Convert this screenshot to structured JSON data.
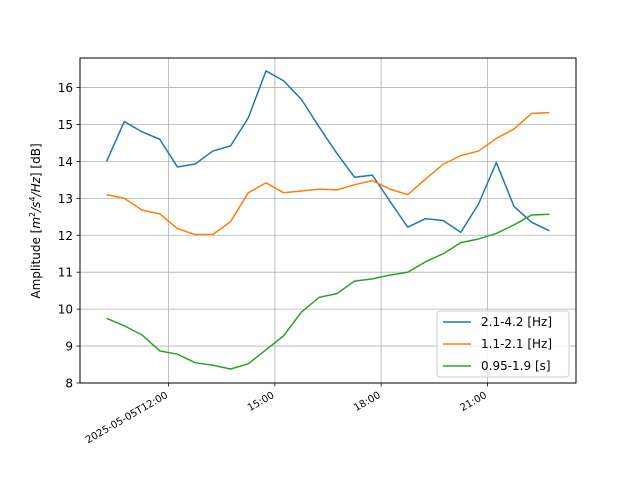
{
  "chart_data": {
    "type": "line",
    "ylabel_parts": [
      "Amplitude [",
      "m",
      "2",
      "/",
      "s",
      "4",
      "/Hz",
      "] [dB]"
    ],
    "ylim": [
      8,
      16.8
    ],
    "xlim": [
      "2025-05-05T09:30",
      "2025-05-05T23:30"
    ],
    "yticks": [
      8,
      9,
      10,
      11,
      12,
      13,
      14,
      15,
      16
    ],
    "xticks": [
      {
        "t": "2025-05-05T12:00",
        "label": "2025-05-05T12:00"
      },
      {
        "t": "2025-05-05T15:00",
        "label": "15:00"
      },
      {
        "t": "2025-05-05T18:00",
        "label": "18:00"
      },
      {
        "t": "2025-05-05T21:00",
        "label": "21:00"
      }
    ],
    "grid": true,
    "legend_position": "lower-right",
    "x": [
      "2025-05-05T10:15",
      "2025-05-05T10:45",
      "2025-05-05T11:15",
      "2025-05-05T11:45",
      "2025-05-05T12:15",
      "2025-05-05T12:45",
      "2025-05-05T13:15",
      "2025-05-05T13:45",
      "2025-05-05T14:15",
      "2025-05-05T14:45",
      "2025-05-05T15:15",
      "2025-05-05T15:45",
      "2025-05-05T16:15",
      "2025-05-05T16:45",
      "2025-05-05T17:15",
      "2025-05-05T17:45",
      "2025-05-05T18:15",
      "2025-05-05T18:45",
      "2025-05-05T19:15",
      "2025-05-05T19:45",
      "2025-05-05T20:15",
      "2025-05-05T20:45",
      "2025-05-05T21:15",
      "2025-05-05T21:45",
      "2025-05-05T22:15",
      "2025-05-05T22:45"
    ],
    "series": [
      {
        "name": "2.1-4.2 [Hz]",
        "color": "#1f77b4",
        "values": [
          14.0,
          15.08,
          14.8,
          14.6,
          13.85,
          13.93,
          14.28,
          14.42,
          15.18,
          16.45,
          16.18,
          15.68,
          14.93,
          14.22,
          13.57,
          13.63,
          12.92,
          12.22,
          12.45,
          12.4,
          12.08,
          12.85,
          13.97,
          12.78,
          12.35,
          12.12
        ]
      },
      {
        "name": "1.1-2.1 [Hz]",
        "color": "#ff7f0e",
        "values": [
          13.1,
          13.0,
          12.68,
          12.58,
          12.18,
          12.02,
          12.02,
          12.37,
          13.15,
          13.42,
          13.15,
          13.2,
          13.25,
          13.23,
          13.37,
          13.48,
          13.25,
          13.1,
          13.52,
          13.92,
          14.16,
          14.28,
          14.62,
          14.88,
          15.3,
          15.32
        ]
      },
      {
        "name": "0.95-1.9 [s]",
        "color": "#2ca02c",
        "values": [
          9.75,
          9.55,
          9.3,
          8.87,
          8.78,
          8.55,
          8.48,
          8.38,
          8.52,
          8.9,
          9.28,
          9.92,
          10.32,
          10.42,
          10.76,
          10.82,
          10.92,
          11.0,
          11.28,
          11.5,
          11.8,
          11.9,
          12.05,
          12.28,
          12.55,
          12.57
        ]
      }
    ]
  }
}
